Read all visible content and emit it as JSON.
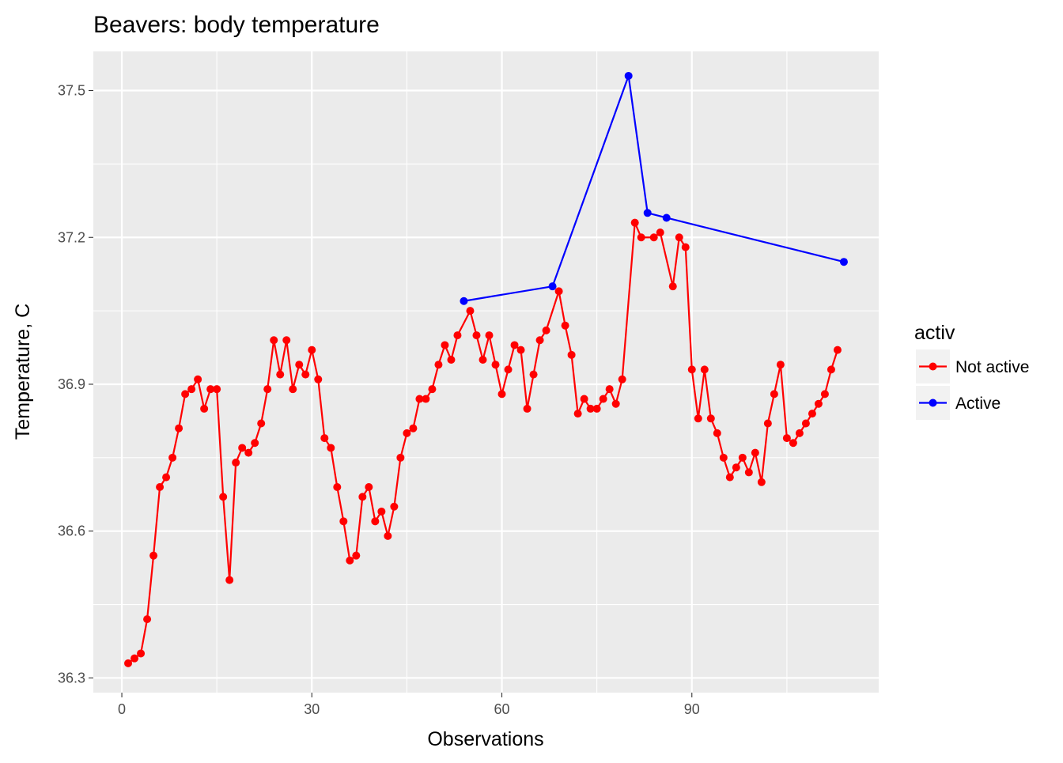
{
  "chart_data": {
    "type": "line",
    "title": "Beavers: body temperature",
    "xlabel": "Observations",
    "ylabel": "Temperature, C",
    "xlim": [
      -4.5,
      119.5
    ],
    "ylim": [
      36.27,
      37.58
    ],
    "xticks": [
      0,
      30,
      60,
      90
    ],
    "xtick_labels": [
      "0",
      "30",
      "60",
      "90"
    ],
    "yticks": [
      36.3,
      36.6,
      36.9,
      37.2,
      37.5
    ],
    "ytick_labels": [
      "36.3",
      "36.6",
      "36.9",
      "37.2",
      "37.5"
    ],
    "grid": true,
    "legend_position": "right",
    "legend_title": "activ",
    "series": [
      {
        "name": "Not active",
        "color": "#ff0000",
        "points": [
          [
            1,
            36.33
          ],
          [
            2,
            36.34
          ],
          [
            3,
            36.35
          ],
          [
            4,
            36.42
          ],
          [
            5,
            36.55
          ],
          [
            6,
            36.69
          ],
          [
            7,
            36.71
          ],
          [
            8,
            36.75
          ],
          [
            9,
            36.81
          ],
          [
            10,
            36.88
          ],
          [
            11,
            36.89
          ],
          [
            12,
            36.91
          ],
          [
            13,
            36.85
          ],
          [
            14,
            36.89
          ],
          [
            15,
            36.89
          ],
          [
            16,
            36.67
          ],
          [
            17,
            36.5
          ],
          [
            18,
            36.74
          ],
          [
            19,
            36.77
          ],
          [
            20,
            36.76
          ],
          [
            21,
            36.78
          ],
          [
            22,
            36.82
          ],
          [
            23,
            36.89
          ],
          [
            24,
            36.99
          ],
          [
            25,
            36.92
          ],
          [
            26,
            36.99
          ],
          [
            27,
            36.89
          ],
          [
            28,
            36.94
          ],
          [
            29,
            36.92
          ],
          [
            30,
            36.97
          ],
          [
            31,
            36.91
          ],
          [
            32,
            36.79
          ],
          [
            33,
            36.77
          ],
          [
            34,
            36.69
          ],
          [
            35,
            36.62
          ],
          [
            36,
            36.54
          ],
          [
            37,
            36.55
          ],
          [
            38,
            36.67
          ],
          [
            39,
            36.69
          ],
          [
            40,
            36.62
          ],
          [
            41,
            36.64
          ],
          [
            42,
            36.59
          ],
          [
            43,
            36.65
          ],
          [
            44,
            36.75
          ],
          [
            45,
            36.8
          ],
          [
            46,
            36.81
          ],
          [
            47,
            36.87
          ],
          [
            48,
            36.87
          ],
          [
            49,
            36.89
          ],
          [
            50,
            36.94
          ],
          [
            51,
            36.98
          ],
          [
            52,
            36.95
          ],
          [
            53,
            37.0
          ],
          [
            55,
            37.05
          ],
          [
            56,
            37.0
          ],
          [
            57,
            36.95
          ],
          [
            58,
            37.0
          ],
          [
            59,
            36.94
          ],
          [
            60,
            36.88
          ],
          [
            61,
            36.93
          ],
          [
            62,
            36.98
          ],
          [
            63,
            36.97
          ],
          [
            64,
            36.85
          ],
          [
            65,
            36.92
          ],
          [
            66,
            36.99
          ],
          [
            67,
            37.01
          ],
          [
            69,
            37.09
          ],
          [
            70,
            37.02
          ],
          [
            71,
            36.96
          ],
          [
            72,
            36.84
          ],
          [
            73,
            36.87
          ],
          [
            74,
            36.85
          ],
          [
            75,
            36.85
          ],
          [
            76,
            36.87
          ],
          [
            77,
            36.89
          ],
          [
            78,
            36.86
          ],
          [
            79,
            36.91
          ],
          [
            81,
            37.23
          ],
          [
            82,
            37.2
          ],
          [
            84,
            37.2
          ],
          [
            85,
            37.21
          ],
          [
            87,
            37.1
          ],
          [
            88,
            37.2
          ],
          [
            89,
            37.18
          ],
          [
            90,
            36.93
          ],
          [
            91,
            36.83
          ],
          [
            92,
            36.93
          ],
          [
            93,
            36.83
          ],
          [
            94,
            36.8
          ],
          [
            95,
            36.75
          ],
          [
            96,
            36.71
          ],
          [
            97,
            36.73
          ],
          [
            98,
            36.75
          ],
          [
            99,
            36.72
          ],
          [
            100,
            36.76
          ],
          [
            101,
            36.7
          ],
          [
            102,
            36.82
          ],
          [
            103,
            36.88
          ],
          [
            104,
            36.94
          ],
          [
            105,
            36.79
          ],
          [
            106,
            36.78
          ],
          [
            107,
            36.8
          ],
          [
            108,
            36.82
          ],
          [
            109,
            36.84
          ],
          [
            110,
            36.86
          ],
          [
            111,
            36.88
          ],
          [
            112,
            36.93
          ],
          [
            113,
            36.97
          ]
        ]
      },
      {
        "name": "Active",
        "color": "#0000ff",
        "points": [
          [
            54,
            37.07
          ],
          [
            68,
            37.1
          ],
          [
            80,
            37.53
          ],
          [
            83,
            37.25
          ],
          [
            86,
            37.24
          ],
          [
            114,
            37.15
          ]
        ]
      }
    ]
  }
}
